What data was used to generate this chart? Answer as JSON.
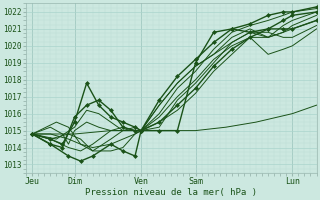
{
  "xlabel": "Pression niveau de la mer( hPa )",
  "ylim": [
    1012.5,
    1022.5
  ],
  "xlim": [
    0,
    96
  ],
  "yticks": [
    1013,
    1014,
    1015,
    1016,
    1017,
    1018,
    1019,
    1020,
    1021,
    1022
  ],
  "xtick_positions": [
    2,
    16,
    38,
    56,
    88
  ],
  "xtick_labels": [
    "Jeu",
    "Dim",
    "Ven",
    "Sam",
    "Lun"
  ],
  "vline_positions": [
    2,
    16,
    38,
    56,
    88
  ],
  "bg_color": "#cce8e0",
  "grid_major_color": "#aad4cc",
  "grid_minor_color": "#bbddd6",
  "line_color": "#1a5218",
  "figsize": [
    3.2,
    2.0
  ],
  "dpi": 100,
  "lines": [
    [
      2,
      1014.8,
      8,
      1014.2,
      14,
      1013.5,
      18,
      1013.2,
      22,
      1013.5,
      28,
      1014.2,
      32,
      1013.8,
      36,
      1013.5,
      38,
      1015.0,
      44,
      1015.0,
      50,
      1015.0,
      56,
      1019.0,
      62,
      1020.8,
      68,
      1021.0,
      74,
      1021.3,
      80,
      1021.8,
      85,
      1022.0,
      88,
      1022.0,
      96,
      1022.3
    ],
    [
      2,
      1014.8,
      10,
      1015.5,
      14,
      1015.2,
      18,
      1014.2,
      22,
      1013.8,
      28,
      1014.5,
      32,
      1015.0,
      36,
      1015.2,
      38,
      1015.0,
      44,
      1016.5,
      50,
      1017.8,
      56,
      1018.8,
      62,
      1019.5,
      68,
      1020.5,
      74,
      1021.0,
      80,
      1020.5,
      85,
      1021.2,
      88,
      1021.5,
      96,
      1022.0
    ],
    [
      2,
      1014.8,
      8,
      1014.5,
      12,
      1014.2,
      16,
      1015.5,
      20,
      1017.8,
      24,
      1016.5,
      28,
      1015.8,
      32,
      1015.5,
      36,
      1015.2,
      38,
      1015.0,
      44,
      1016.8,
      50,
      1018.2,
      56,
      1019.2,
      62,
      1020.2,
      68,
      1021.0,
      74,
      1020.8,
      80,
      1021.0,
      85,
      1021.5,
      88,
      1021.8,
      96,
      1022.0
    ],
    [
      2,
      1014.8,
      8,
      1014.5,
      14,
      1014.0,
      18,
      1013.8,
      22,
      1014.2,
      28,
      1015.0,
      32,
      1015.2,
      36,
      1015.0,
      38,
      1015.0,
      44,
      1016.0,
      50,
      1017.5,
      56,
      1018.5,
      62,
      1019.8,
      68,
      1020.8,
      74,
      1021.2,
      80,
      1021.5,
      85,
      1021.8,
      88,
      1022.0,
      96,
      1022.2
    ],
    [
      2,
      1014.8,
      10,
      1014.5,
      16,
      1015.2,
      20,
      1016.2,
      24,
      1016.0,
      28,
      1015.5,
      32,
      1015.0,
      36,
      1015.0,
      38,
      1015.0,
      44,
      1016.5,
      50,
      1017.8,
      56,
      1018.8,
      62,
      1019.5,
      68,
      1020.2,
      74,
      1020.8,
      80,
      1020.5,
      85,
      1020.8,
      88,
      1021.2,
      96,
      1021.8
    ],
    [
      2,
      1014.8,
      8,
      1014.2,
      12,
      1014.0,
      16,
      1015.8,
      20,
      1016.5,
      24,
      1016.8,
      28,
      1016.2,
      32,
      1015.2,
      36,
      1015.0,
      38,
      1015.0,
      44,
      1015.5,
      50,
      1016.5,
      56,
      1017.5,
      62,
      1018.8,
      68,
      1019.8,
      74,
      1020.5,
      80,
      1021.0,
      85,
      1021.0,
      88,
      1021.0,
      96,
      1021.5
    ],
    [
      2,
      1014.8,
      8,
      1014.5,
      14,
      1014.8,
      18,
      1014.5,
      22,
      1013.8,
      28,
      1013.8,
      32,
      1014.0,
      36,
      1014.8,
      38,
      1015.0,
      44,
      1015.8,
      50,
      1017.0,
      56,
      1018.0,
      62,
      1019.2,
      68,
      1020.0,
      74,
      1020.5,
      80,
      1019.5,
      85,
      1019.8,
      88,
      1020.0,
      96,
      1021.0
    ],
    [
      2,
      1014.8,
      8,
      1015.2,
      12,
      1014.8,
      14,
      1014.2,
      16,
      1015.0,
      20,
      1015.5,
      24,
      1015.2,
      28,
      1015.0,
      32,
      1015.0,
      36,
      1015.0,
      38,
      1015.0,
      44,
      1015.2,
      50,
      1016.8,
      56,
      1017.8,
      62,
      1019.0,
      68,
      1020.2,
      74,
      1020.8,
      80,
      1020.8,
      85,
      1020.5,
      88,
      1020.5,
      96,
      1021.2
    ],
    [
      2,
      1014.8,
      8,
      1014.8,
      14,
      1014.5,
      18,
      1014.2,
      22,
      1014.0,
      28,
      1014.2,
      32,
      1014.5,
      36,
      1014.8,
      38,
      1015.0,
      44,
      1015.5,
      50,
      1016.2,
      56,
      1017.2,
      62,
      1018.5,
      68,
      1019.5,
      74,
      1020.5,
      80,
      1020.5,
      85,
      1020.8,
      88,
      1021.0,
      96,
      1021.5
    ],
    [
      2,
      1014.8,
      16,
      1014.8,
      28,
      1015.0,
      38,
      1015.0,
      48,
      1015.0,
      56,
      1015.0,
      66,
      1015.2,
      76,
      1015.5,
      88,
      1016.0,
      96,
      1016.5
    ]
  ],
  "marked_lines": [
    0,
    2,
    5
  ],
  "marker_style": "D",
  "marker_size": 2.5
}
